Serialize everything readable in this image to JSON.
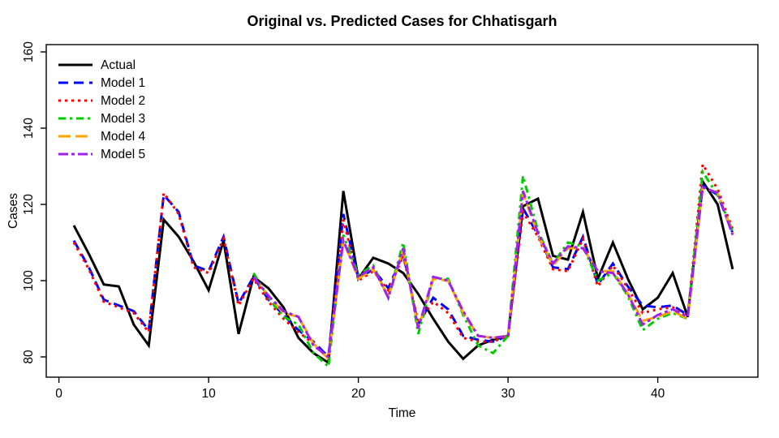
{
  "chart_data": {
    "type": "line",
    "title": "Original vs. Predicted Cases for Chhatisgarh",
    "xlabel": "Time",
    "ylabel": "Cases",
    "xlim": [
      -0.8,
      46.7
    ],
    "ylim": [
      75,
      162
    ],
    "xticks": [
      0,
      10,
      20,
      30,
      40
    ],
    "yticks": [
      80,
      100,
      120,
      140,
      160
    ],
    "grid": false,
    "legend_position": "topleft",
    "x": [
      1,
      2,
      3,
      4,
      5,
      6,
      7,
      8,
      9,
      10,
      11,
      12,
      13,
      14,
      15,
      16,
      17,
      18,
      19,
      20,
      21,
      22,
      23,
      24,
      25,
      26,
      27,
      28,
      29,
      30,
      31,
      32,
      33,
      34,
      35,
      36,
      37,
      38,
      39,
      40,
      41,
      42,
      43,
      44,
      45
    ],
    "series": [
      {
        "name": "Actual",
        "color": "#000000",
        "dash": "solid",
        "values": [
          114.5,
          107,
          99,
          98.5,
          88.5,
          83,
          116,
          111.5,
          105,
          97.5,
          110.5,
          86,
          101,
          98,
          93,
          85,
          81,
          78.5,
          123.5,
          100.5,
          106,
          104.5,
          102,
          96.5,
          90,
          84,
          79.5,
          83,
          84.5,
          85.5,
          119.5,
          121.5,
          106.5,
          105.5,
          118,
          100.5,
          110,
          100.5,
          92.5,
          95.5,
          102,
          90.5,
          126,
          120,
          103
        ]
      },
      {
        "name": "Model 1",
        "color": "#0000FF",
        "dash": "dashed",
        "values": [
          110.5,
          103.5,
          95,
          93.5,
          92,
          87,
          122.5,
          118,
          104,
          102.5,
          111.5,
          94,
          101,
          95,
          91,
          87,
          84,
          80,
          117.5,
          100.5,
          103,
          98,
          107,
          88.5,
          95.5,
          92.5,
          85.5,
          84.5,
          84,
          85.5,
          119,
          112,
          103.5,
          103,
          111.5,
          99,
          104.5,
          98.5,
          93.5,
          93,
          93.5,
          91,
          125,
          122.5,
          112.5
        ]
      },
      {
        "name": "Model 2",
        "color": "#FF0000",
        "dash": "dotted",
        "values": [
          110,
          103,
          94.5,
          93,
          91.5,
          86.5,
          123,
          117.5,
          103.5,
          102,
          111,
          93.5,
          100.5,
          94.5,
          90,
          86.5,
          83.5,
          79.5,
          116,
          100,
          102.5,
          97.5,
          106.5,
          89,
          94.5,
          91.5,
          85,
          84,
          84,
          85.5,
          118,
          111.5,
          103,
          102.5,
          111,
          98.5,
          104,
          98,
          91.5,
          92.5,
          93,
          90.5,
          130.5,
          124,
          113.5
        ]
      },
      {
        "name": "Model 3",
        "color": "#00CC00",
        "dash": "dashdot",
        "values": [
          null,
          null,
          null,
          null,
          null,
          null,
          null,
          null,
          null,
          null,
          null,
          null,
          102,
          95.5,
          90.5,
          88.5,
          81,
          77.5,
          112,
          101.5,
          104,
          95.5,
          110,
          86,
          100.5,
          100.5,
          91,
          83,
          81,
          85.5,
          127.5,
          113,
          104.5,
          110,
          109,
          100,
          102,
          96,
          87,
          90,
          91.5,
          90,
          128.5,
          122.5,
          113
        ]
      },
      {
        "name": "Model 4",
        "color": "#FFA500",
        "dash": "longdash",
        "values": [
          null,
          null,
          null,
          null,
          null,
          null,
          null,
          null,
          null,
          null,
          null,
          null,
          101,
          96,
          91.5,
          90.5,
          83.5,
          79.5,
          110.5,
          100.5,
          103,
          96,
          108,
          87.5,
          100.5,
          100,
          91.5,
          85.5,
          85,
          85.5,
          123,
          112,
          104,
          108.5,
          108.5,
          102.5,
          102.5,
          96.5,
          89.5,
          90.5,
          92,
          90,
          124.5,
          123,
          112.5
        ]
      },
      {
        "name": "Model 5",
        "color": "#A020F0",
        "dash": "twodash",
        "values": [
          null,
          null,
          null,
          null,
          null,
          null,
          null,
          null,
          null,
          null,
          null,
          null,
          101,
          96,
          92,
          90.5,
          83,
          80,
          110.5,
          101,
          103.5,
          95.5,
          108.5,
          87.5,
          101,
          100,
          92,
          85.5,
          85,
          85.5,
          123.5,
          112.5,
          104.5,
          109,
          108.5,
          102.5,
          102,
          96.5,
          88.5,
          91,
          92.5,
          90.5,
          124.5,
          123,
          112
        ]
      }
    ]
  }
}
